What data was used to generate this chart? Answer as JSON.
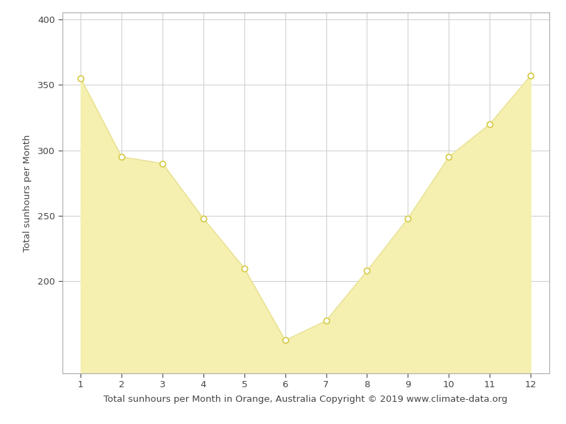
{
  "months": [
    1,
    2,
    3,
    4,
    5,
    6,
    7,
    8,
    9,
    10,
    11,
    12
  ],
  "sunhours": [
    355,
    295,
    290,
    248,
    210,
    155,
    170,
    208,
    248,
    295,
    320,
    357
  ],
  "fill_color": "#f5f0b0",
  "line_color": "#e8e090",
  "marker_color": "#ffffff",
  "marker_edge_color": "#d4c840",
  "ylabel": "Total sunhours per Month",
  "xlabel": "Total sunhours per Month in Orange, Australia Copyright © 2019 www.climate-data.org",
  "ylim": [
    130,
    405
  ],
  "xlim": [
    0.55,
    12.45
  ],
  "yticks": [
    200,
    250,
    300,
    350,
    400
  ],
  "xticks": [
    1,
    2,
    3,
    4,
    5,
    6,
    7,
    8,
    9,
    10,
    11,
    12
  ],
  "grid_color": "#cccccc",
  "background_color": "#ffffff",
  "axis_fontsize": 9.5,
  "tick_fontsize": 9.5,
  "fig_width": 8.15,
  "fig_height": 6.11
}
